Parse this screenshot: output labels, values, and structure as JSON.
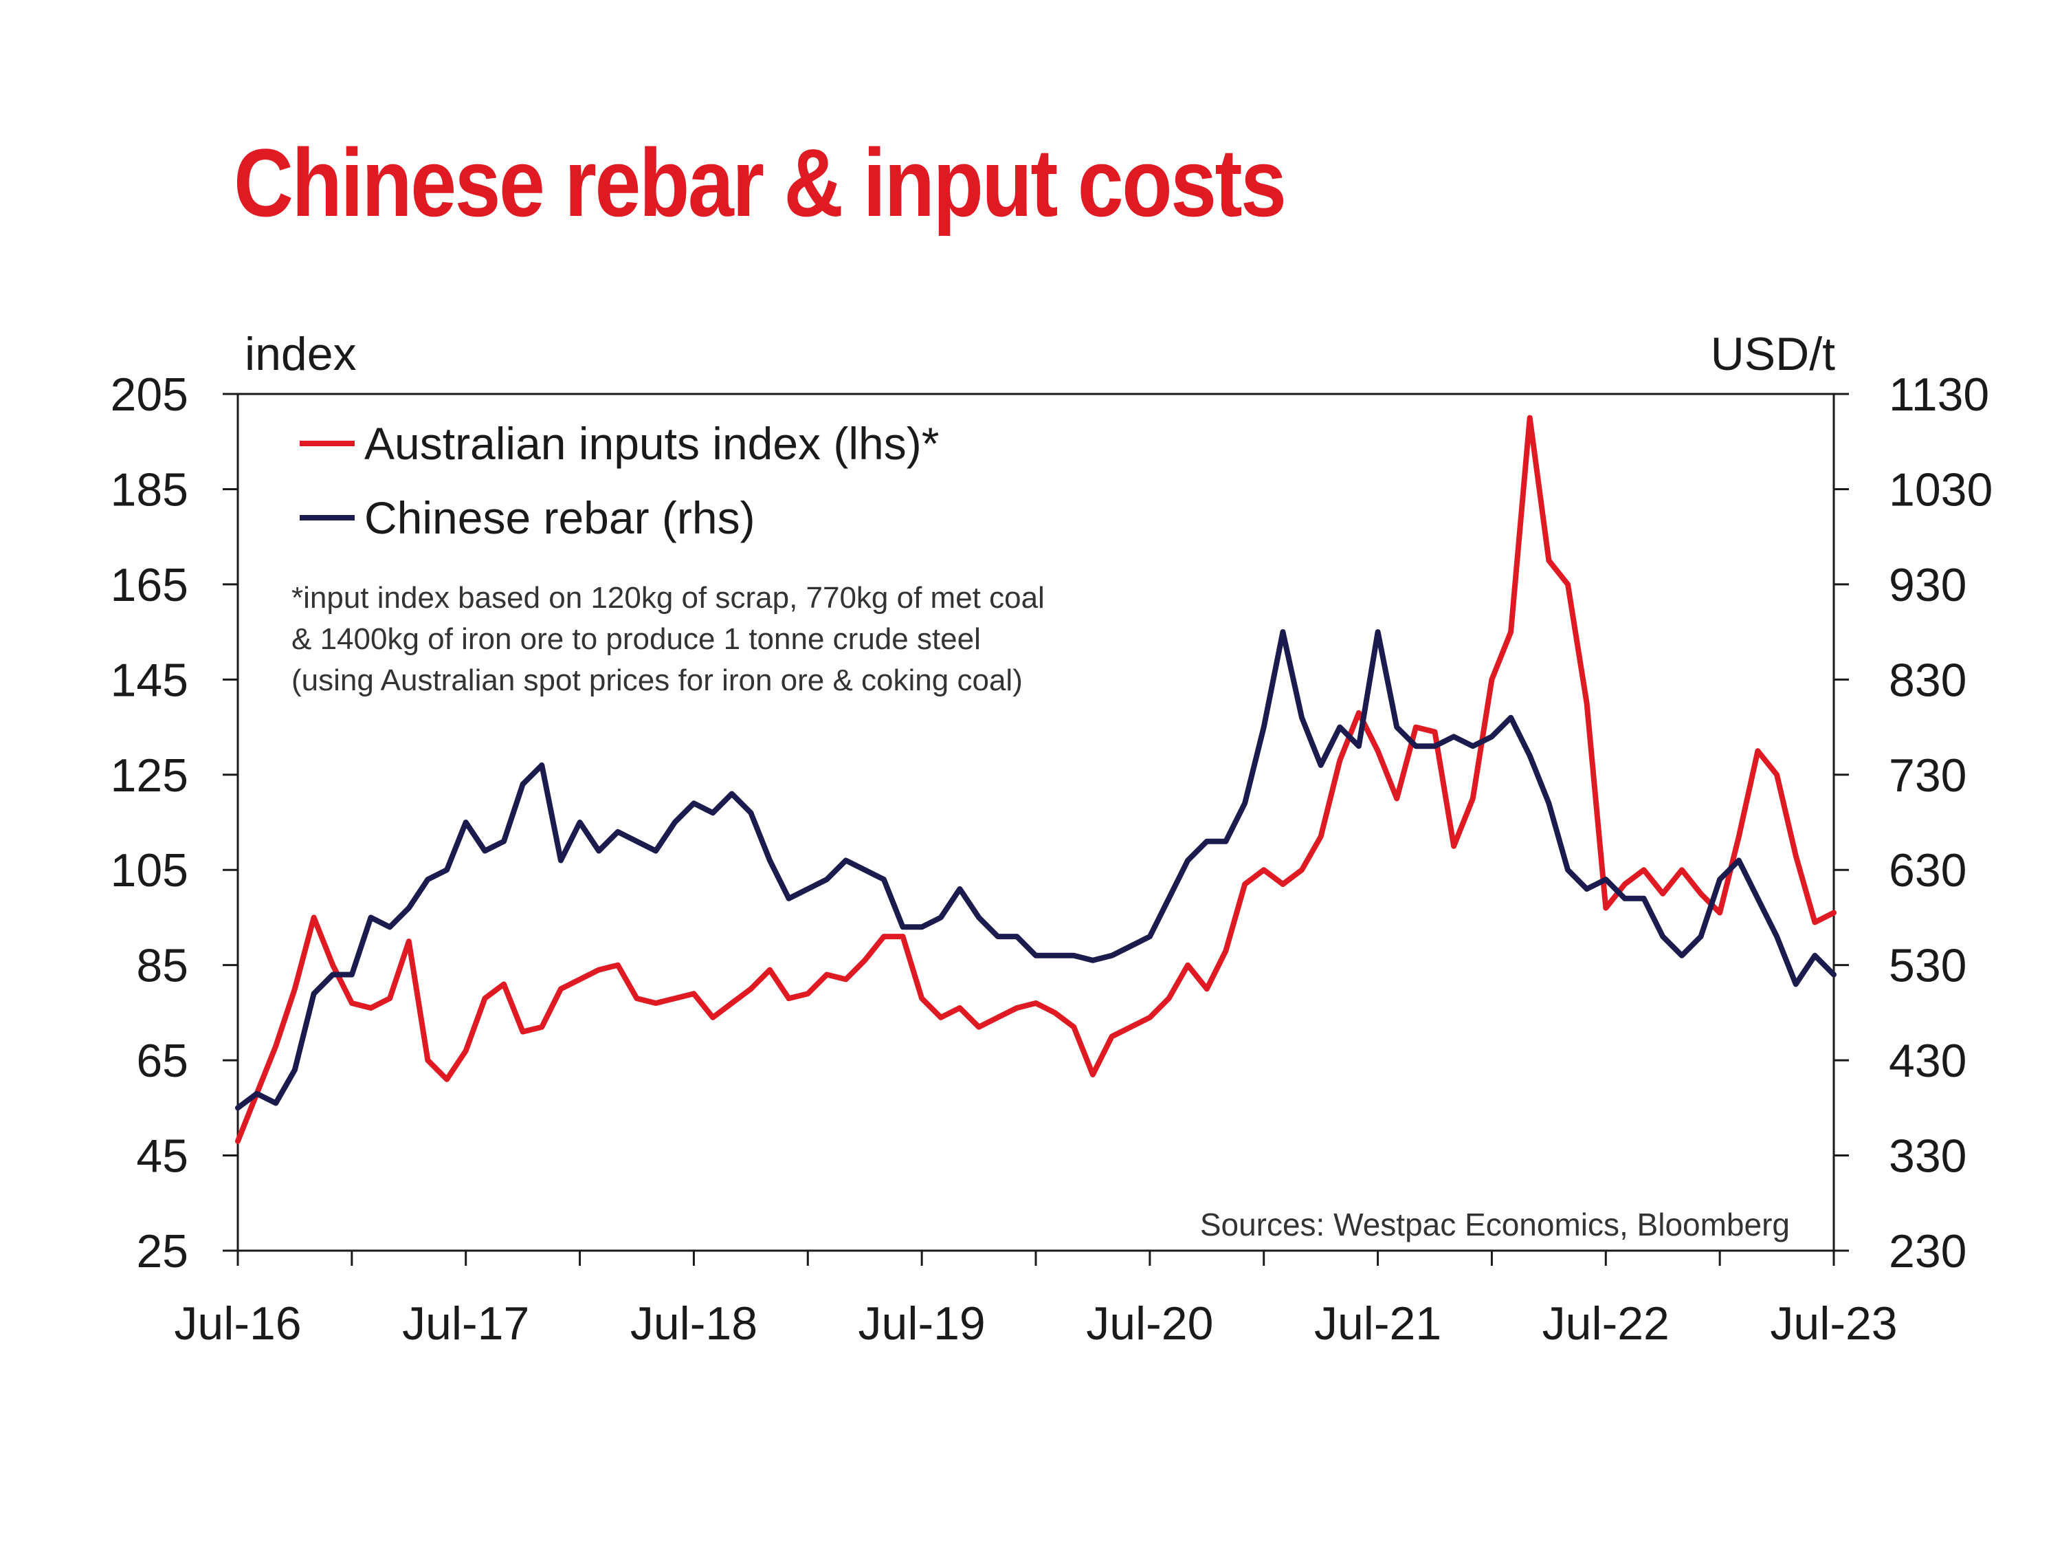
{
  "chart_data": {
    "type": "line",
    "title": "Chinese rebar & input costs",
    "ylabel_left": "index",
    "ylabel_right": "USD/t",
    "x_ticks": [
      "Jul-16",
      "Jul-17",
      "Jul-18",
      "Jul-19",
      "Jul-20",
      "Jul-21",
      "Jul-22",
      "Jul-23"
    ],
    "x_range": [
      "2016-07",
      "2023-07"
    ],
    "ylim_left": [
      25,
      205
    ],
    "yticks_left": [
      25,
      45,
      65,
      85,
      105,
      125,
      145,
      165,
      185,
      205
    ],
    "ylim_right": [
      230,
      1130
    ],
    "yticks_right": [
      230,
      330,
      430,
      530,
      630,
      730,
      830,
      930,
      1030,
      1130
    ],
    "grid": false,
    "legend_position": "top-left",
    "series": [
      {
        "name": "Australian inputs index (lhs)*",
        "axis": "left",
        "color": "#e01a22",
        "x": [
          "2016-07",
          "2016-08",
          "2016-09",
          "2016-10",
          "2016-11",
          "2016-12",
          "2017-01",
          "2017-02",
          "2017-03",
          "2017-04",
          "2017-05",
          "2017-06",
          "2017-07",
          "2017-08",
          "2017-09",
          "2017-10",
          "2017-11",
          "2017-12",
          "2018-01",
          "2018-02",
          "2018-03",
          "2018-04",
          "2018-05",
          "2018-06",
          "2018-07",
          "2018-08",
          "2018-09",
          "2018-10",
          "2018-11",
          "2018-12",
          "2019-01",
          "2019-02",
          "2019-03",
          "2019-04",
          "2019-05",
          "2019-06",
          "2019-07",
          "2019-08",
          "2019-09",
          "2019-10",
          "2019-11",
          "2019-12",
          "2020-01",
          "2020-02",
          "2020-03",
          "2020-04",
          "2020-05",
          "2020-06",
          "2020-07",
          "2020-08",
          "2020-09",
          "2020-10",
          "2020-11",
          "2020-12",
          "2021-01",
          "2021-02",
          "2021-03",
          "2021-04",
          "2021-05",
          "2021-06",
          "2021-07",
          "2021-08",
          "2021-09",
          "2021-10",
          "2021-11",
          "2021-12",
          "2022-01",
          "2022-02",
          "2022-03",
          "2022-04",
          "2022-05",
          "2022-06",
          "2022-07",
          "2022-08",
          "2022-09",
          "2022-10",
          "2022-11",
          "2022-12",
          "2023-01",
          "2023-02",
          "2023-03",
          "2023-04",
          "2023-05",
          "2023-06",
          "2023-07"
        ],
        "values": [
          48,
          58,
          68,
          80,
          95,
          85,
          77,
          76,
          78,
          90,
          65,
          61,
          67,
          78,
          81,
          71,
          72,
          80,
          82,
          84,
          85,
          78,
          77,
          78,
          79,
          74,
          77,
          80,
          84,
          78,
          79,
          83,
          82,
          86,
          91,
          91,
          78,
          74,
          76,
          72,
          74,
          76,
          77,
          75,
          72,
          62,
          70,
          72,
          74,
          78,
          85,
          80,
          88,
          102,
          105,
          102,
          105,
          112,
          128,
          138,
          130,
          120,
          135,
          134,
          110,
          120,
          145,
          155,
          200,
          170,
          165,
          140,
          97,
          102,
          105,
          100,
          105,
          100,
          96,
          112,
          130,
          125,
          108,
          94,
          96
        ]
      },
      {
        "name": "Chinese rebar  (rhs)",
        "axis": "right",
        "color": "#1c1b4d",
        "x": [
          "2016-07",
          "2016-08",
          "2016-09",
          "2016-10",
          "2016-11",
          "2016-12",
          "2017-01",
          "2017-02",
          "2017-03",
          "2017-04",
          "2017-05",
          "2017-06",
          "2017-07",
          "2017-08",
          "2017-09",
          "2017-10",
          "2017-11",
          "2017-12",
          "2018-01",
          "2018-02",
          "2018-03",
          "2018-04",
          "2018-05",
          "2018-06",
          "2018-07",
          "2018-08",
          "2018-09",
          "2018-10",
          "2018-11",
          "2018-12",
          "2019-01",
          "2019-02",
          "2019-03",
          "2019-04",
          "2019-05",
          "2019-06",
          "2019-07",
          "2019-08",
          "2019-09",
          "2019-10",
          "2019-11",
          "2019-12",
          "2020-01",
          "2020-02",
          "2020-03",
          "2020-04",
          "2020-05",
          "2020-06",
          "2020-07",
          "2020-08",
          "2020-09",
          "2020-10",
          "2020-11",
          "2020-12",
          "2021-01",
          "2021-02",
          "2021-03",
          "2021-04",
          "2021-05",
          "2021-06",
          "2021-07",
          "2021-08",
          "2021-09",
          "2021-10",
          "2021-11",
          "2021-12",
          "2022-01",
          "2022-02",
          "2022-03",
          "2022-04",
          "2022-05",
          "2022-06",
          "2022-07",
          "2022-08",
          "2022-09",
          "2022-10",
          "2022-11",
          "2022-12",
          "2023-01",
          "2023-02",
          "2023-03",
          "2023-04",
          "2023-05",
          "2023-06",
          "2023-07"
        ],
        "values": [
          380,
          395,
          385,
          420,
          500,
          520,
          520,
          580,
          570,
          590,
          620,
          630,
          680,
          650,
          660,
          720,
          740,
          640,
          680,
          650,
          670,
          660,
          650,
          680,
          700,
          690,
          710,
          690,
          640,
          600,
          610,
          620,
          640,
          630,
          620,
          570,
          570,
          580,
          610,
          580,
          560,
          560,
          540,
          540,
          540,
          535,
          540,
          550,
          560,
          600,
          640,
          660,
          660,
          700,
          780,
          880,
          790,
          740,
          780,
          760,
          880,
          780,
          760,
          760,
          770,
          760,
          770,
          790,
          750,
          700,
          630,
          610,
          620,
          600,
          600,
          560,
          540,
          560,
          620,
          640,
          600,
          560,
          510,
          540,
          520
        ]
      }
    ],
    "legend": [
      "Australian inputs index (lhs)*",
      "Chinese rebar  (rhs)"
    ],
    "annotation": [
      "*input index based on 120kg of scrap, 770kg of met coal",
      "& 1400kg of iron ore to produce 1 tonne crude steel",
      "(using Australian spot prices for iron ore & coking coal)"
    ],
    "source": "Sources: Westpac Economics, Bloomberg"
  }
}
